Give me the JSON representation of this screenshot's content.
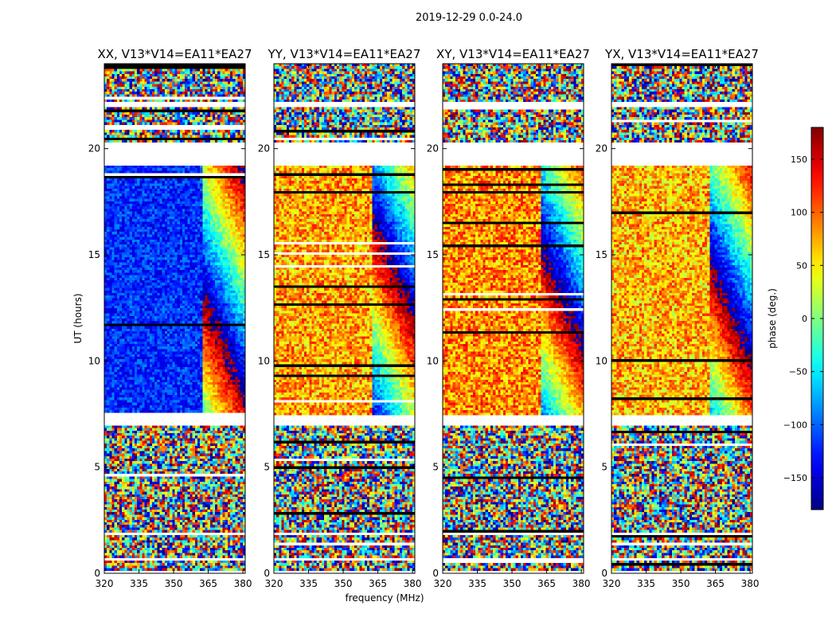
{
  "chart_data": {
    "type": "heatmap",
    "title": "2019-12-29 0.0-24.0",
    "xlabel": "frequency (MHz)",
    "ylabel": "UT (hours)",
    "xlim": [
      320,
      381
    ],
    "ylim": [
      0,
      24
    ],
    "x_ticks": [
      320,
      335,
      350,
      365,
      380
    ],
    "y_ticks": [
      0,
      5,
      10,
      15,
      20
    ],
    "panels": [
      {
        "title": "XX, V13*V14=EA11*EA27",
        "polarization": "XX",
        "base_phase": -120
      },
      {
        "title": "YY, V13*V14=EA11*EA27",
        "polarization": "YY",
        "base_phase": 75
      },
      {
        "title": "XY, V13*V14=EA11*EA27",
        "polarization": "XY",
        "base_phase": 85
      },
      {
        "title": "YX, V13*V14=EA11*EA27",
        "polarization": "YX",
        "base_phase": 70
      }
    ],
    "flagged_ut_ranges": [
      [
        0.0,
        0.15
      ],
      [
        0.55,
        0.7
      ],
      [
        1.85,
        1.95
      ],
      [
        6.9,
        7.4
      ],
      [
        19.2,
        20.3
      ],
      [
        22.0,
        22.2
      ]
    ],
    "colorbar": {
      "label": "phase (deg.)",
      "range": [
        -180,
        180
      ],
      "ticks": [
        -150,
        -100,
        -50,
        0,
        50,
        100,
        150
      ],
      "tick_labels": [
        "−150",
        "−100",
        "−50",
        "0",
        "50",
        "100",
        "150"
      ],
      "colormap": "jet"
    }
  }
}
